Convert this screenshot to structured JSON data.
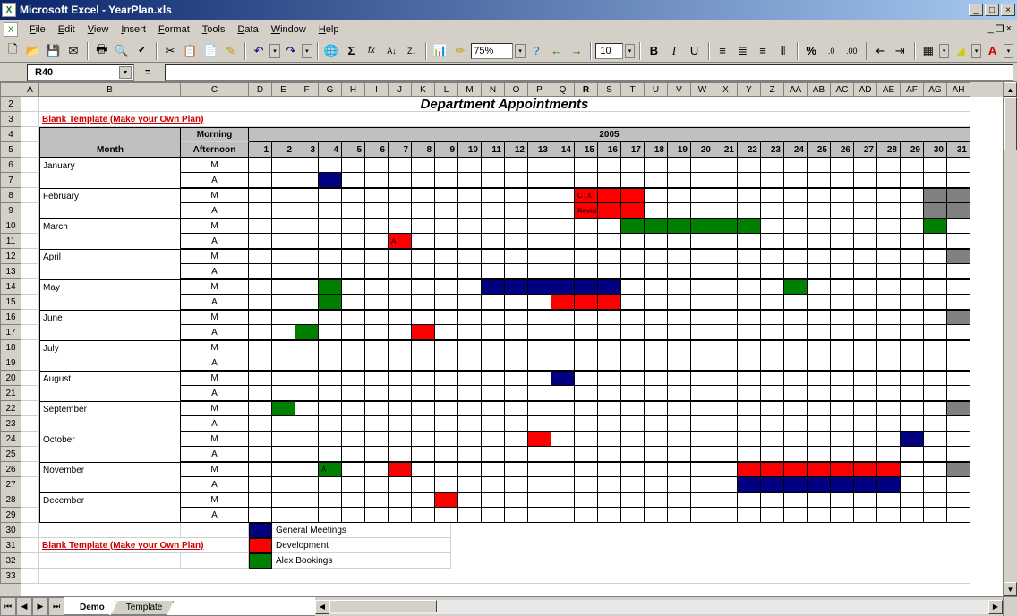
{
  "window": {
    "title": "Microsoft Excel - YearPlan.xls",
    "app_icon_text": "X"
  },
  "menus": [
    "File",
    "Edit",
    "View",
    "Insert",
    "Format",
    "Tools",
    "Data",
    "Window",
    "Help"
  ],
  "toolbar": {
    "zoom": "75%",
    "fontsize": "10"
  },
  "namebox": "R40",
  "formula": "",
  "columns": {
    "letters_main": [
      "A",
      "B",
      "C"
    ],
    "letters_days": [
      "D",
      "E",
      "F",
      "G",
      "H",
      "I",
      "J",
      "K",
      "L",
      "M",
      "N",
      "O",
      "P",
      "Q",
      "R",
      "S",
      "T",
      "U",
      "V",
      "W",
      "X",
      "Y",
      "Z",
      "AA",
      "AB",
      "AC",
      "AD",
      "AE",
      "AF",
      "AG",
      "AH"
    ],
    "widths_main": [
      20,
      158,
      76
    ],
    "day_width": 26,
    "active_col": "R"
  },
  "rows_visible": [
    2,
    3,
    4,
    5,
    6,
    7,
    8,
    9,
    10,
    11,
    12,
    13,
    14,
    15,
    16,
    17,
    18,
    19,
    20,
    21,
    22,
    23,
    24,
    25,
    26,
    27,
    28,
    29,
    30,
    31,
    32,
    33
  ],
  "sheet": {
    "title": "Department Appointments",
    "link_text": "Blank Template (Make your Own Plan)",
    "header_month": "Month",
    "header_ma": "Morning Afternoon",
    "year": "2005",
    "day_numbers": [
      1,
      2,
      3,
      4,
      5,
      6,
      7,
      8,
      9,
      10,
      11,
      12,
      13,
      14,
      15,
      16,
      17,
      18,
      19,
      20,
      21,
      22,
      23,
      24,
      25,
      26,
      27,
      28,
      29,
      30,
      31
    ],
    "months": [
      "January",
      "February",
      "March",
      "April",
      "May",
      "June",
      "July",
      "August",
      "September",
      "October",
      "November",
      "December"
    ],
    "ma_labels": [
      "M",
      "A"
    ],
    "colors": {
      "blue": "#000080",
      "red": "#ff0000",
      "green": "#008000",
      "gray": "#808080",
      "header_bg": "#c0c0c0"
    },
    "fills": {
      "January_M": [],
      "January_A": [
        [
          "blue",
          4,
          4
        ]
      ],
      "February_M": [
        [
          "red",
          15,
          17,
          "CTX"
        ],
        [
          "gray",
          30,
          31
        ]
      ],
      "February_A": [
        [
          "red",
          15,
          17,
          "Revision"
        ],
        [
          "gray",
          30,
          31
        ]
      ],
      "March_M": [
        [
          "green",
          17,
          22
        ],
        [
          "green",
          30,
          30
        ]
      ],
      "March_A": [
        [
          "red",
          7,
          7,
          "A"
        ]
      ],
      "April_M": [
        [
          "gray",
          31,
          31
        ]
      ],
      "April_A": [],
      "May_M": [
        [
          "green",
          4,
          4
        ],
        [
          "blue",
          11,
          16
        ],
        [
          "green",
          24,
          24
        ]
      ],
      "May_A": [
        [
          "green",
          4,
          4
        ],
        [
          "red",
          14,
          16
        ]
      ],
      "June_M": [
        [
          "gray",
          31,
          31
        ]
      ],
      "June_A": [
        [
          "green",
          3,
          3
        ],
        [
          "red",
          8,
          8
        ]
      ],
      "July_M": [],
      "July_A": [],
      "August_M": [
        [
          "blue",
          14,
          14
        ]
      ],
      "August_A": [],
      "September_M": [
        [
          "green",
          2,
          2
        ],
        [
          "gray",
          31,
          31
        ]
      ],
      "September_A": [],
      "October_M": [
        [
          "red",
          13,
          13
        ],
        [
          "blue",
          29,
          29
        ]
      ],
      "October_A": [],
      "November_M": [
        [
          "green",
          4,
          4,
          "A"
        ],
        [
          "red",
          7,
          7
        ],
        [
          "red",
          22,
          28
        ],
        [
          "gray",
          31,
          31
        ]
      ],
      "November_A": [
        [
          "blue",
          22,
          28
        ]
      ],
      "December_M": [
        [
          "red",
          9,
          9
        ]
      ],
      "December_A": []
    },
    "legend": [
      {
        "color": "blue",
        "label": "General Meetings"
      },
      {
        "color": "red",
        "label": "Development"
      },
      {
        "color": "green",
        "label": "Alex Bookings"
      }
    ]
  },
  "tabs": {
    "items": [
      "Demo",
      "Template"
    ],
    "active": "Demo"
  }
}
